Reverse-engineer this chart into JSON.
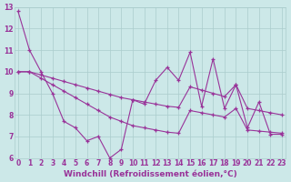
{
  "bg_color": "#cce8e8",
  "line_color": "#993399",
  "grid_color": "#aacccc",
  "series1": [
    12.8,
    11.0,
    10.0,
    9.0,
    7.7,
    7.4,
    6.8,
    7.0,
    6.0,
    6.4,
    8.7,
    8.5,
    9.6,
    10.2,
    9.6,
    10.9,
    8.4,
    10.6,
    8.3,
    9.4,
    7.4,
    8.6,
    7.1,
    7.1
  ],
  "series2": [
    10.0,
    10.0,
    9.85,
    9.7,
    9.55,
    9.4,
    9.25,
    9.1,
    8.95,
    8.8,
    8.7,
    8.6,
    8.5,
    8.4,
    8.35,
    9.3,
    9.15,
    9.0,
    8.85,
    9.4,
    8.3,
    8.2,
    8.1,
    8.0
  ],
  "series3": [
    10.0,
    10.0,
    9.7,
    9.4,
    9.1,
    8.8,
    8.5,
    8.2,
    7.9,
    7.7,
    7.5,
    7.4,
    7.3,
    7.2,
    7.15,
    8.2,
    8.1,
    8.0,
    7.9,
    8.3,
    7.3,
    7.25,
    7.2,
    7.15
  ],
  "ylim": [
    6,
    13
  ],
  "xlim": [
    -0.3,
    23.3
  ],
  "yticks": [
    6,
    7,
    8,
    9,
    10,
    11,
    12,
    13
  ],
  "xticks": [
    0,
    1,
    2,
    3,
    4,
    5,
    6,
    7,
    8,
    9,
    10,
    11,
    12,
    13,
    14,
    15,
    16,
    17,
    18,
    19,
    20,
    21,
    22,
    23
  ],
  "tick_fontsize": 5.5,
  "xlabel": "Windchill (Refroidissement éolien,°C)",
  "xlabel_fontsize": 6.5,
  "xlabel_color": "#993399",
  "marker": "+"
}
